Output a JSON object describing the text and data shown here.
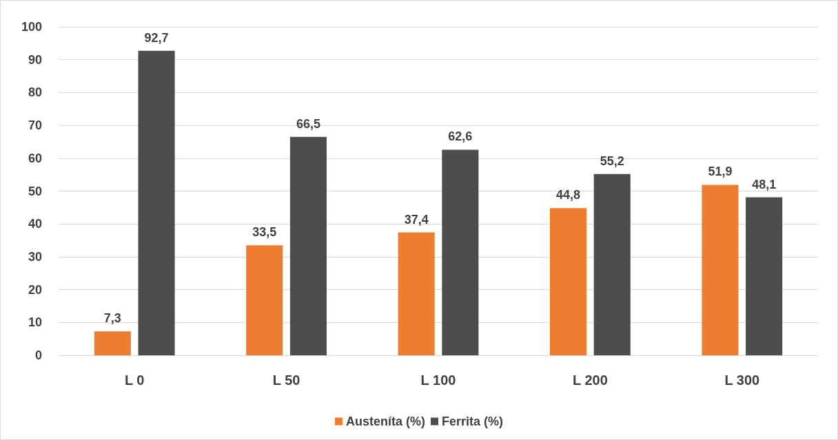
{
  "chart_data": {
    "type": "bar",
    "categories": [
      "L 0",
      "L 50",
      "L 100",
      "L 200",
      "L 300"
    ],
    "series": [
      {
        "name": "Austeníta (%)",
        "color": "#ed7d31",
        "values": [
          7.3,
          33.5,
          37.4,
          44.8,
          51.9
        ],
        "value_labels": [
          "7,3",
          "33,5",
          "37,4",
          "44,8",
          "51,9"
        ]
      },
      {
        "name": "Ferrita (%)",
        "color": "#4d4d4d",
        "values": [
          92.7,
          66.5,
          62.6,
          55.2,
          48.1
        ],
        "value_labels": [
          "92,7",
          "66,5",
          "62,6",
          "55,2",
          "48,1"
        ]
      }
    ],
    "ylim": [
      0,
      100
    ],
    "yticks": [
      0,
      10,
      20,
      30,
      40,
      50,
      60,
      70,
      80,
      90,
      100
    ],
    "grid": "y",
    "legend": "bottom"
  }
}
